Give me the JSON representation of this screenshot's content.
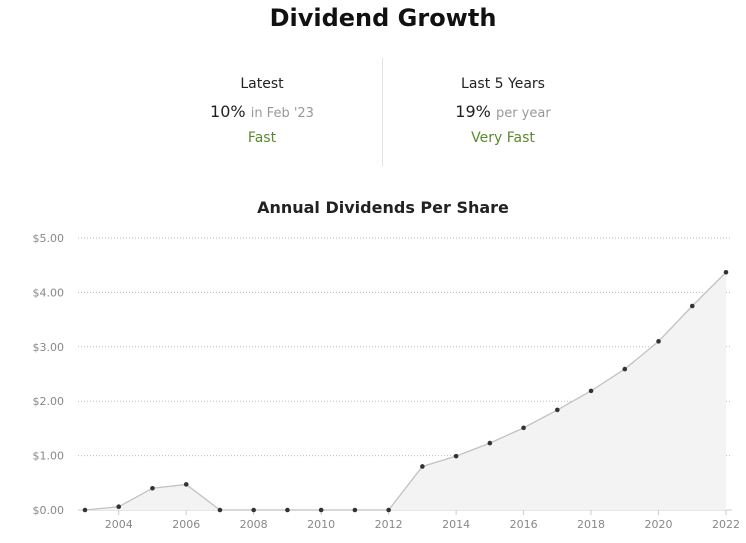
{
  "header": {
    "title": "Dividend Growth"
  },
  "stats": {
    "latest": {
      "label": "Latest",
      "value": "10%",
      "qualifier": "in Feb '23",
      "rating": "Fast"
    },
    "five_year": {
      "label": "Last 5 Years",
      "value": "19%",
      "qualifier": "per year",
      "rating": "Very Fast"
    }
  },
  "colors": {
    "rating_green": "#5b8a2e",
    "line": "#c2c2c2",
    "area": "#f3f3f3",
    "point": "#333333"
  },
  "chart_data": {
    "type": "area",
    "title": "Annual Dividends Per Share",
    "xlabel": "",
    "ylabel": "",
    "x": [
      2003,
      2004,
      2005,
      2006,
      2007,
      2008,
      2009,
      2010,
      2011,
      2012,
      2013,
      2014,
      2015,
      2016,
      2017,
      2018,
      2019,
      2020,
      2021,
      2022
    ],
    "values": [
      0.0,
      0.06,
      0.4,
      0.47,
      0.0,
      0.0,
      0.0,
      0.0,
      0.0,
      0.0,
      0.8,
      0.99,
      1.23,
      1.51,
      1.84,
      2.19,
      2.59,
      3.1,
      3.75,
      4.37
    ],
    "xticks": [
      "2004",
      "2006",
      "2008",
      "2010",
      "2012",
      "2014",
      "2016",
      "2018",
      "2020",
      "2022"
    ],
    "yticks": [
      "$0.00",
      "$1.00",
      "$2.00",
      "$3.00",
      "$4.00",
      "$5.00"
    ],
    "ylim": [
      0,
      5
    ],
    "xlim": [
      2003,
      2022
    ],
    "grid": true
  }
}
